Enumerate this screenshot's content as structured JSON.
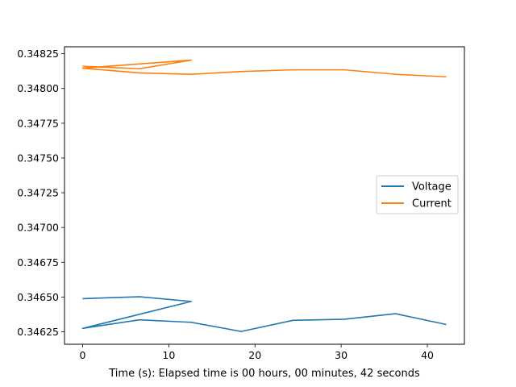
{
  "chart_data": {
    "type": "line",
    "title": "",
    "xlabel": "Time (s): Elapsed time is 00 hours, 00 minutes, 42 seconds",
    "ylabel": "",
    "xlim": [
      -2.1,
      44.3
    ],
    "ylim": [
      0.34616,
      0.3483
    ],
    "xticks": [
      0,
      10,
      20,
      30,
      40
    ],
    "xtick_labels": [
      "0",
      "10",
      "20",
      "30",
      "40"
    ],
    "yticks": [
      0.34625,
      0.3465,
      0.34675,
      0.347,
      0.34725,
      0.3475,
      0.34775,
      0.348,
      0.34825
    ],
    "ytick_labels": [
      "0.34625",
      "0.34650",
      "0.34675",
      "0.34700",
      "0.34725",
      "0.34750",
      "0.34775",
      "0.34800",
      "0.34825"
    ],
    "grid": false,
    "legend": "center-right",
    "series": [
      {
        "name": "Voltage",
        "color": "#1f77b4",
        "points": [
          [
            0.0,
            0.346488
          ],
          [
            6.6,
            0.346502
          ],
          [
            12.6,
            0.346468
          ],
          [
            0.0,
            0.346274
          ],
          [
            6.6,
            0.346336
          ],
          [
            12.6,
            0.346318
          ],
          [
            18.4,
            0.346252
          ],
          [
            24.4,
            0.346332
          ],
          [
            30.4,
            0.34634
          ],
          [
            36.3,
            0.34638
          ],
          [
            42.2,
            0.346302
          ]
        ]
      },
      {
        "name": "Current",
        "color": "#ff7f0e",
        "points": [
          [
            0.0,
            0.34816
          ],
          [
            6.6,
            0.348142
          ],
          [
            12.6,
            0.348204
          ],
          [
            0.0,
            0.348146
          ],
          [
            6.6,
            0.348112
          ],
          [
            12.6,
            0.348102
          ],
          [
            18.4,
            0.348122
          ],
          [
            24.4,
            0.348134
          ],
          [
            30.4,
            0.348134
          ],
          [
            36.3,
            0.348102
          ],
          [
            42.2,
            0.348084
          ]
        ]
      }
    ]
  }
}
